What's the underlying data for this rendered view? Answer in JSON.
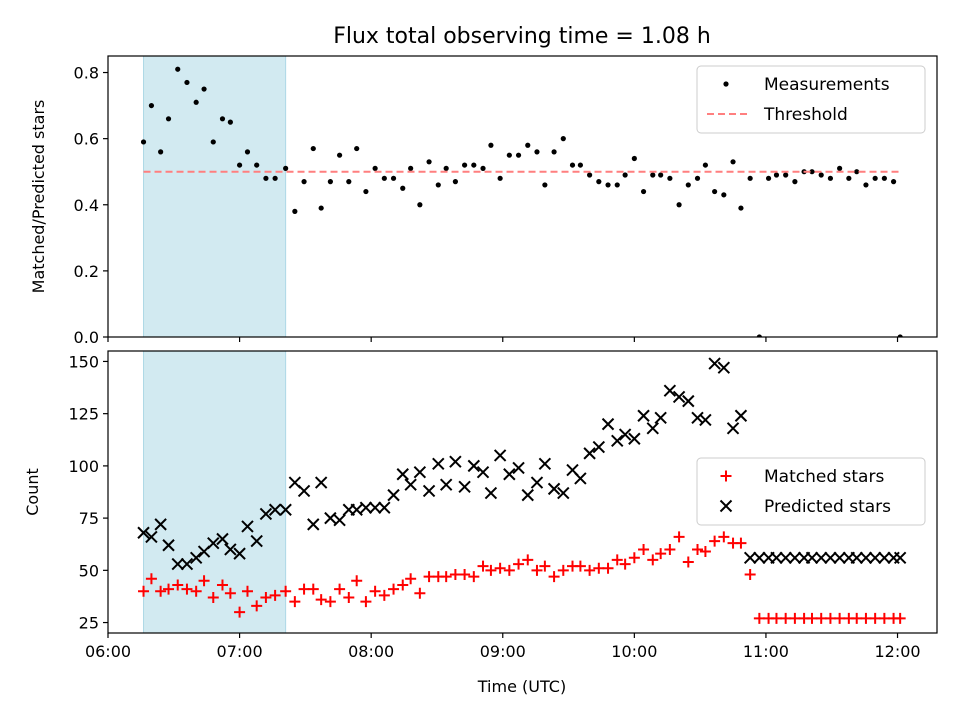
{
  "chart_data": {
    "title": "Flux total observing time = 1.08 h",
    "xlabel": "Time (UTC)",
    "x_unit": "hours UTC",
    "xlim": [
      6.0,
      12.3
    ],
    "x_tick_values": [
      6,
      7,
      8,
      9,
      10,
      11,
      12
    ],
    "x_tick_labels": [
      "06:00",
      "07:00",
      "08:00",
      "09:00",
      "10:00",
      "11:00",
      "12:00"
    ],
    "shaded_span": {
      "x": [
        6.27,
        7.35
      ],
      "color": "#add8e6"
    },
    "panels": [
      {
        "type": "scatter",
        "ylabel": "Matched/Predicted stars",
        "ylim": [
          0,
          0.85
        ],
        "y_tick_values": [
          0.0,
          0.2,
          0.4,
          0.6,
          0.8
        ],
        "y_tick_labels": [
          "0.0",
          "0.2",
          "0.4",
          "0.6",
          "0.8"
        ],
        "legend": [
          "Measurements",
          "Threshold"
        ],
        "legend_position": "upper right",
        "series": [
          {
            "name": "Measurements",
            "marker": "dot",
            "color": "#000000",
            "x": [
              6.27,
              6.33,
              6.4,
              6.46,
              6.53,
              6.6,
              6.67,
              6.73,
              6.8,
              6.87,
              6.93,
              7.0,
              7.06,
              7.13,
              7.2,
              7.27,
              7.35,
              7.42,
              7.49,
              7.56,
              7.62,
              7.69,
              7.76,
              7.83,
              7.89,
              7.96,
              8.03,
              8.1,
              8.17,
              8.24,
              8.3,
              8.37,
              8.44,
              8.51,
              8.57,
              8.64,
              8.71,
              8.78,
              8.85,
              8.91,
              8.98,
              9.05,
              9.12,
              9.19,
              9.26,
              9.32,
              9.39,
              9.46,
              9.53,
              9.59,
              9.66,
              9.73,
              9.8,
              9.87,
              9.93,
              10.0,
              10.07,
              10.14,
              10.2,
              10.27,
              10.34,
              10.41,
              10.48,
              10.54,
              10.61,
              10.68,
              10.75,
              10.81,
              10.88,
              10.95,
              11.02,
              11.08,
              11.15,
              11.22,
              11.29,
              11.35,
              11.42,
              11.49,
              11.56,
              11.63,
              11.69,
              11.76,
              11.83,
              11.9,
              11.97,
              12.02
            ],
            "y": [
              0.59,
              0.7,
              0.56,
              0.66,
              0.81,
              0.77,
              0.71,
              0.75,
              0.59,
              0.66,
              0.65,
              0.52,
              0.56,
              0.52,
              0.48,
              0.48,
              0.51,
              0.38,
              0.47,
              0.57,
              0.39,
              0.47,
              0.55,
              0.47,
              0.57,
              0.44,
              0.51,
              0.48,
              0.48,
              0.45,
              0.51,
              0.4,
              0.53,
              0.46,
              0.51,
              0.47,
              0.52,
              0.52,
              0.51,
              0.58,
              0.48,
              0.55,
              0.55,
              0.58,
              0.56,
              0.46,
              0.56,
              0.6,
              0.52,
              0.52,
              0.49,
              0.47,
              0.46,
              0.46,
              0.49,
              0.54,
              0.44,
              0.49,
              0.49,
              0.48,
              0.4,
              0.46,
              0.48,
              0.52,
              0.44,
              0.43,
              0.53,
              0.39,
              0.48,
              0.0,
              0.48,
              0.49,
              0.49,
              0.47,
              0.5,
              0.5,
              0.49,
              0.48,
              0.51,
              0.48,
              0.5,
              0.46,
              0.48,
              0.48,
              0.47,
              0.0
            ]
          },
          {
            "name": "Threshold",
            "marker": "dashed-line",
            "color": "#ff7f7f",
            "x": [
              6.27,
              12.03
            ],
            "y": [
              0.5,
              0.5
            ]
          }
        ]
      },
      {
        "type": "scatter",
        "ylabel": "Count",
        "ylim": [
          20,
          155
        ],
        "y_tick_values": [
          25,
          50,
          75,
          100,
          125,
          150
        ],
        "y_tick_labels": [
          "25",
          "50",
          "75",
          "100",
          "125",
          "150"
        ],
        "legend": [
          "Matched stars",
          "Predicted stars"
        ],
        "legend_position": "center right",
        "series": [
          {
            "name": "Matched stars",
            "marker": "plus",
            "color": "#ff0000",
            "x": [
              6.27,
              6.33,
              6.4,
              6.46,
              6.53,
              6.6,
              6.67,
              6.73,
              6.8,
              6.87,
              6.93,
              7.0,
              7.06,
              7.13,
              7.2,
              7.27,
              7.35,
              7.42,
              7.49,
              7.56,
              7.62,
              7.69,
              7.76,
              7.83,
              7.89,
              7.96,
              8.03,
              8.1,
              8.17,
              8.24,
              8.3,
              8.37,
              8.44,
              8.51,
              8.57,
              8.64,
              8.71,
              8.78,
              8.85,
              8.91,
              8.98,
              9.05,
              9.12,
              9.19,
              9.26,
              9.32,
              9.39,
              9.46,
              9.53,
              9.59,
              9.66,
              9.73,
              9.8,
              9.87,
              9.93,
              10.0,
              10.07,
              10.14,
              10.2,
              10.27,
              10.34,
              10.41,
              10.48,
              10.54,
              10.61,
              10.68,
              10.75,
              10.81,
              10.88,
              10.95,
              11.02,
              11.08,
              11.15,
              11.22,
              11.29,
              11.35,
              11.42,
              11.49,
              11.56,
              11.63,
              11.69,
              11.76,
              11.83,
              11.9,
              11.97,
              12.02
            ],
            "y": [
              40,
              46,
              40,
              41,
              43,
              41,
              40,
              45,
              37,
              43,
              39,
              30,
              40,
              33,
              37,
              38,
              40,
              35,
              41,
              41,
              36,
              35,
              41,
              37,
              45,
              35,
              40,
              38,
              41,
              43,
              46,
              39,
              47,
              47,
              47,
              48,
              48,
              47,
              52,
              50,
              51,
              50,
              53,
              55,
              50,
              52,
              47,
              50,
              52,
              52,
              50,
              51,
              51,
              55,
              53,
              56,
              60,
              55,
              58,
              60,
              66,
              54,
              60,
              59,
              64,
              66,
              63,
              63,
              48,
              27,
              27,
              27,
              27,
              27,
              27,
              27,
              27,
              27,
              27,
              27,
              27,
              27,
              27,
              27,
              27,
              27
            ]
          },
          {
            "name": "Predicted stars",
            "marker": "x",
            "color": "#000000",
            "x": [
              6.27,
              6.33,
              6.4,
              6.46,
              6.53,
              6.6,
              6.67,
              6.73,
              6.8,
              6.87,
              6.93,
              7.0,
              7.06,
              7.13,
              7.2,
              7.27,
              7.35,
              7.42,
              7.49,
              7.56,
              7.62,
              7.69,
              7.76,
              7.83,
              7.89,
              7.96,
              8.03,
              8.1,
              8.17,
              8.24,
              8.3,
              8.37,
              8.44,
              8.51,
              8.57,
              8.64,
              8.71,
              8.78,
              8.85,
              8.91,
              8.98,
              9.05,
              9.12,
              9.19,
              9.26,
              9.32,
              9.39,
              9.46,
              9.53,
              9.59,
              9.66,
              9.73,
              9.8,
              9.87,
              9.93,
              10.0,
              10.07,
              10.14,
              10.2,
              10.27,
              10.34,
              10.41,
              10.48,
              10.54,
              10.61,
              10.68,
              10.75,
              10.81,
              10.88,
              10.95,
              11.02,
              11.08,
              11.15,
              11.22,
              11.29,
              11.35,
              11.42,
              11.49,
              11.56,
              11.63,
              11.69,
              11.76,
              11.83,
              11.9,
              11.97,
              12.02
            ],
            "y": [
              68,
              66,
              72,
              62,
              53,
              53,
              56,
              59,
              63,
              65,
              60,
              58,
              71,
              64,
              77,
              79,
              79,
              92,
              88,
              72,
              92,
              75,
              74,
              79,
              79,
              80,
              80,
              80,
              86,
              96,
              91,
              97,
              88,
              101,
              91,
              102,
              90,
              100,
              97,
              87,
              105,
              96,
              99,
              86,
              92,
              101,
              89,
              87,
              98,
              94,
              106,
              109,
              120,
              112,
              115,
              113,
              124,
              118,
              123,
              136,
              133,
              131,
              123,
              122,
              149,
              147,
              118,
              124,
              56,
              56,
              56,
              56,
              56,
              56,
              56,
              56,
              56,
              56,
              56,
              56,
              56,
              56,
              56,
              56,
              56,
              56
            ]
          }
        ]
      }
    ]
  }
}
